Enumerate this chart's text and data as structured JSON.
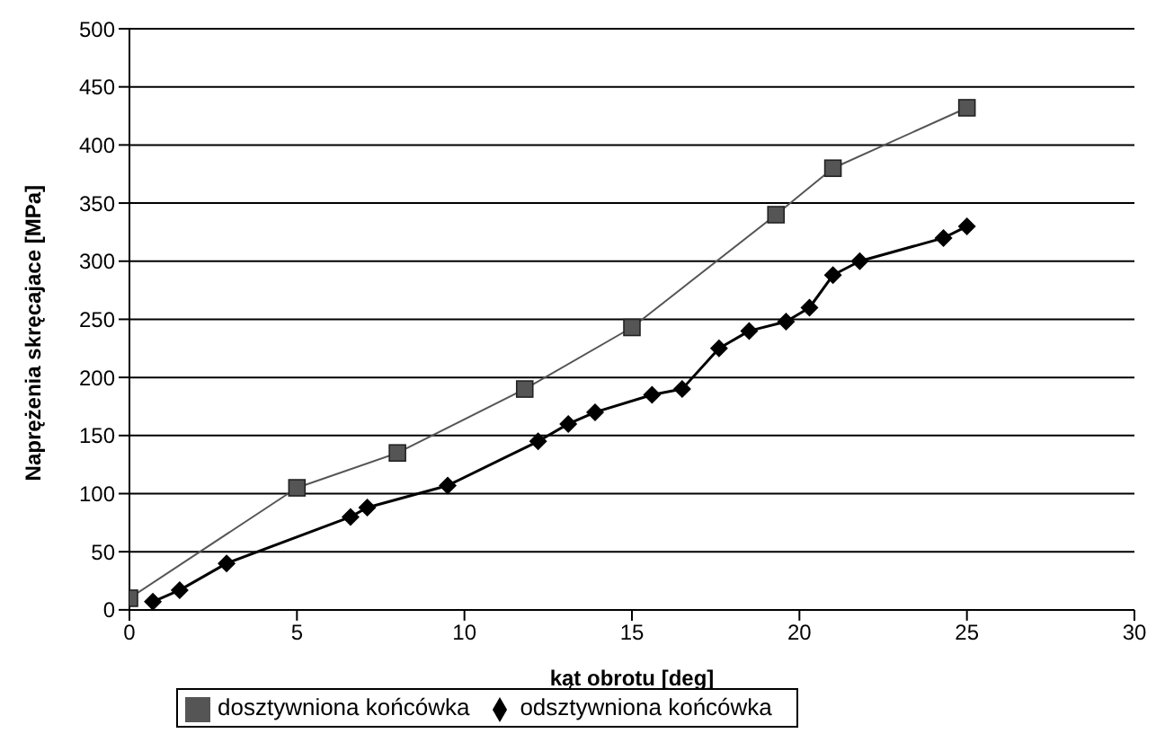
{
  "chart_data": {
    "type": "line",
    "xlabel": "kąt obrotu [deg]",
    "ylabel": "Naprężenia skręcajace [MPa]",
    "xlim": [
      0,
      30
    ],
    "xticks": [
      0,
      5,
      10,
      15,
      20,
      25,
      30
    ],
    "ylim": [
      0,
      500
    ],
    "yticks": [
      0,
      50,
      100,
      150,
      200,
      250,
      300,
      350,
      400,
      450,
      500
    ],
    "grid": "y",
    "legend": "bottom",
    "series": [
      {
        "name": "odsztywniona końcówka",
        "color": "#000000",
        "marker": "diamond",
        "x": [
          0.7,
          1.5,
          2.9,
          6.6,
          7.1,
          9.5,
          12.2,
          13.1,
          13.9,
          15.6,
          16.5,
          17.6,
          18.5,
          19.6,
          20.3,
          21.0,
          21.8,
          24.3,
          25
        ],
        "values": [
          7,
          17,
          40,
          80,
          88,
          107,
          145,
          160,
          170,
          185,
          190,
          225,
          240,
          248,
          260,
          288,
          300,
          320,
          330
        ]
      },
      {
        "name": "dosztywniona końcówka",
        "color": "#555555",
        "marker": "square",
        "x": [
          0,
          5,
          8,
          11.8,
          15,
          19.3,
          21,
          25
        ],
        "values": [
          10,
          105,
          135,
          190,
          243,
          340,
          380,
          432
        ]
      }
    ]
  }
}
